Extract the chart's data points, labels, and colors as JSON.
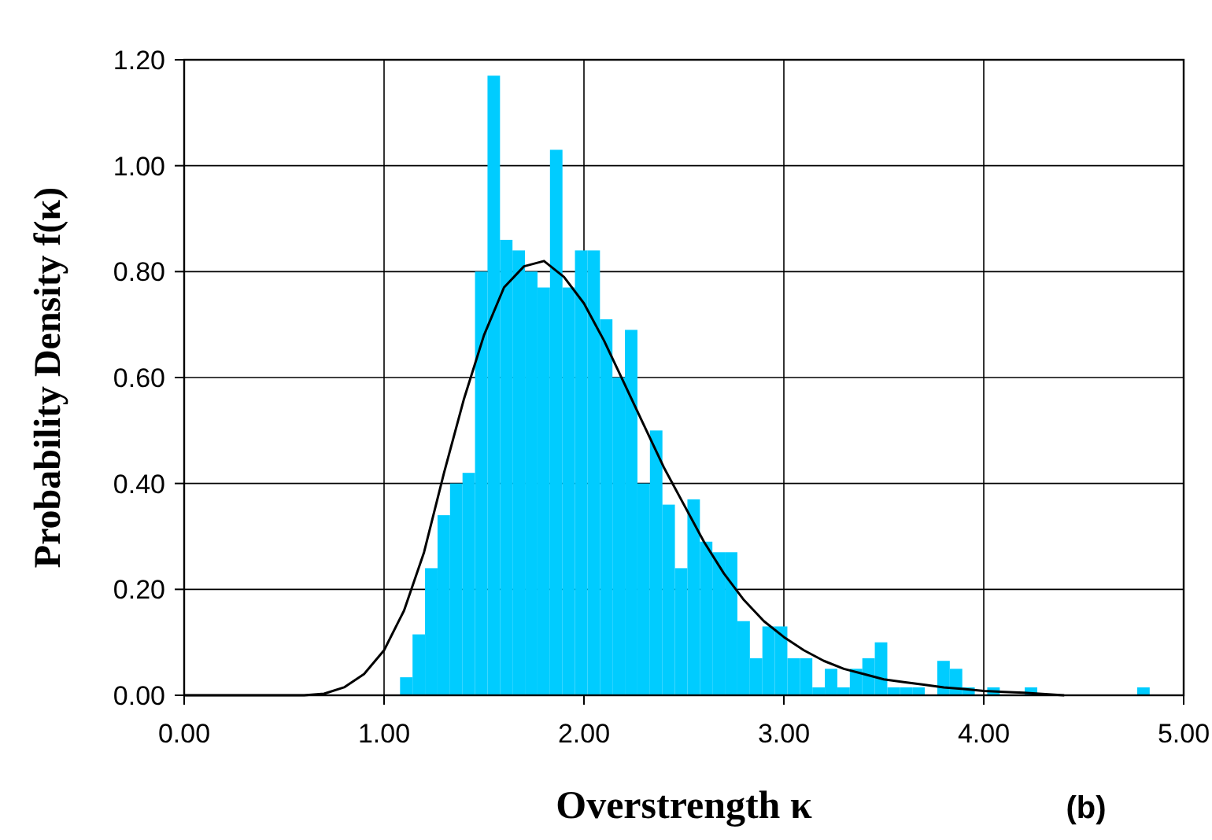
{
  "chart_data": {
    "type": "histogram",
    "xlabel": "Overstrength κ",
    "ylabel": "Probability Density f(κ)",
    "annotations": [
      "(b)"
    ],
    "bins": [
      1.08,
      1.1425,
      1.205,
      1.2675,
      1.33,
      1.3925,
      1.455,
      1.5175,
      1.58,
      1.6425,
      1.705,
      1.7675,
      1.83,
      1.8925,
      1.955,
      2.0175,
      2.08,
      2.1425,
      2.205,
      2.2675,
      2.33,
      2.3925,
      2.455,
      2.5175,
      2.58,
      2.6425,
      2.705,
      2.7675,
      2.83,
      2.8925,
      2.955,
      3.0175,
      3.08,
      3.1425,
      3.205,
      3.2675,
      3.33,
      3.3925,
      3.455,
      3.5175,
      3.58,
      3.6425,
      3.705,
      3.7675,
      3.83,
      3.8925,
      3.955,
      4.0175,
      4.08,
      4.1425,
      4.205,
      4.2675,
      4.33,
      4.3925,
      4.455,
      4.5175,
      4.58,
      4.6425,
      4.705,
      4.7675,
      4.83
    ],
    "values": [
      0.034,
      0.115,
      0.24,
      0.34,
      0.4,
      0.42,
      0.8,
      1.17,
      0.86,
      0.84,
      0.8,
      0.77,
      1.03,
      0.77,
      0.84,
      0.84,
      0.71,
      0.6,
      0.69,
      0.4,
      0.5,
      0.36,
      0.24,
      0.37,
      0.29,
      0.27,
      0.27,
      0.14,
      0.07,
      0.13,
      0.13,
      0.07,
      0.07,
      0.015,
      0.05,
      0.015,
      0.05,
      0.07,
      0.1,
      0.015,
      0.015,
      0.015,
      0,
      0.065,
      0.05,
      0.015,
      0,
      0.015,
      0,
      0,
      0.015,
      0,
      0,
      0,
      0,
      0,
      0,
      0,
      0,
      0.015
    ],
    "color": "#00ccff",
    "series": [
      {
        "type": "line",
        "color": "#000000",
        "x": [
          0,
          0.6,
          0.7,
          0.8,
          0.9,
          1.0,
          1.1,
          1.2,
          1.3,
          1.4,
          1.5,
          1.6,
          1.7,
          1.8,
          1.9,
          2.0,
          2.1,
          2.2,
          2.3,
          2.4,
          2.5,
          2.6,
          2.7,
          2.8,
          2.9,
          3.0,
          3.1,
          3.2,
          3.3,
          3.4,
          3.5,
          3.6,
          3.7,
          3.8,
          3.9,
          4.0,
          4.2,
          4.4
        ],
        "values": [
          0,
          0,
          0.003,
          0.015,
          0.04,
          0.085,
          0.16,
          0.27,
          0.42,
          0.56,
          0.68,
          0.77,
          0.81,
          0.82,
          0.79,
          0.74,
          0.67,
          0.59,
          0.51,
          0.43,
          0.36,
          0.29,
          0.23,
          0.18,
          0.14,
          0.11,
          0.085,
          0.065,
          0.05,
          0.04,
          0.03,
          0.025,
          0.02,
          0.015,
          0.012,
          0.008,
          0.005,
          0
        ]
      }
    ],
    "xlim": [
      0,
      5
    ],
    "ylim": [
      0,
      1.2
    ],
    "xticks": [
      {
        "value": 0,
        "label": "0.00"
      },
      {
        "value": 1,
        "label": "1.00"
      },
      {
        "value": 2,
        "label": "2.00"
      },
      {
        "value": 3,
        "label": "3.00"
      },
      {
        "value": 4,
        "label": "4.00"
      },
      {
        "value": 5,
        "label": "5.00"
      }
    ],
    "yticks": [
      {
        "value": 0,
        "label": "0.00"
      },
      {
        "value": 0.2,
        "label": "0.20"
      },
      {
        "value": 0.4,
        "label": "0.40"
      },
      {
        "value": 0.6,
        "label": "0.60"
      },
      {
        "value": 0.8,
        "label": "0.80"
      },
      {
        "value": 1,
        "label": "1.00"
      },
      {
        "value": 1.2,
        "label": "1.20"
      }
    ],
    "grid": true
  }
}
